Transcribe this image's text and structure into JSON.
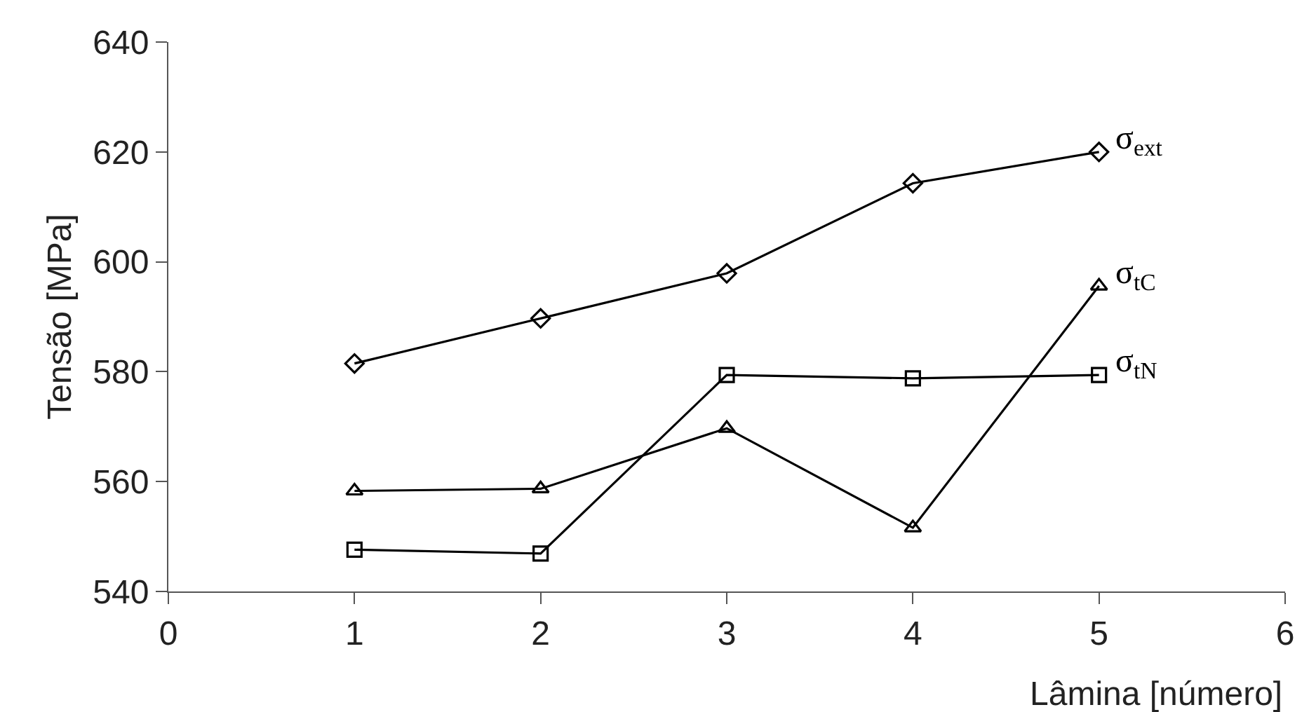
{
  "chart_data": {
    "type": "line",
    "xlabel": "Lâmina [número]",
    "ylabel": "Tensão [MPa]",
    "x": [
      1,
      2,
      3,
      4,
      5
    ],
    "series": [
      {
        "name": "σ$_{ext}$",
        "color": "#000000",
        "marker": "diamond",
        "values": [
          581.5,
          589.7,
          597.9,
          614.3,
          620.0
        ]
      },
      {
        "name": "σ$_{tC}$",
        "color": "#000000",
        "marker": "triangle",
        "values": [
          558.3,
          558.7,
          569.7,
          551.6,
          595.6
        ]
      },
      {
        "name": "σ$_{tN}$",
        "color": "#000000",
        "marker": "square",
        "values": [
          547.6,
          546.9,
          579.4,
          578.8,
          579.4
        ]
      }
    ],
    "xlim": [
      0,
      6
    ],
    "xticks": [
      0,
      1,
      2,
      3,
      4,
      5,
      6
    ],
    "ylim": [
      540,
      640
    ],
    "yticks": [
      540,
      560,
      580,
      600,
      620,
      640
    ],
    "legend": false,
    "line_style": "solid"
  }
}
